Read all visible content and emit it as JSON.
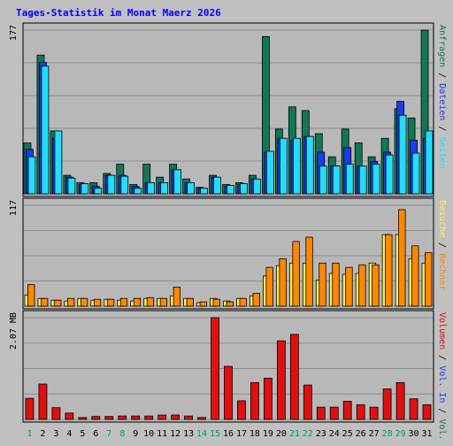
{
  "chart_data": {
    "type": "bar",
    "title": "Tages-Statistik im Monat Maerz 2026",
    "days": [
      "1",
      "2",
      "3",
      "4",
      "5",
      "6",
      "7",
      "8",
      "9",
      "10",
      "11",
      "12",
      "13",
      "14",
      "15",
      "16",
      "17",
      "18",
      "19",
      "20",
      "21",
      "22",
      "23",
      "24",
      "25",
      "26",
      "27",
      "28",
      "29",
      "30",
      "31"
    ],
    "weekend_days": [
      "1",
      "7",
      "8",
      "14",
      "15",
      "21",
      "22",
      "28",
      "29"
    ],
    "colors": {
      "background": "#c0c0c0",
      "plot": "#b8b8b8",
      "grid": "#8e8e8e",
      "title": "#0000ff",
      "tick": "#000000",
      "weekend_tick": "#00a060",
      "anfragen": "#117755",
      "dateien": "#1a3cf0",
      "seiten": "#22ddff",
      "besuche": "#ffee55",
      "rechner": "#ff8800",
      "volumen": "#e01010"
    },
    "panels": [
      {
        "id": "hits",
        "ymax": 177,
        "ymax_label": "177",
        "series": [
          {
            "name": "Anfragen",
            "values": [
              55,
              150,
              68,
              20,
              12,
              12,
              22,
              32,
              10,
              32,
              18,
              32,
              16,
              7,
              20,
              10,
              12,
              20,
              170,
              70,
              94,
              90,
              65,
              40,
              70,
              55,
              40,
              60,
              92,
              82,
              177
            ]
          },
          {
            "name": "Dateien",
            "values": [
              48,
              142,
              60,
              18,
              10,
              8,
              20,
              20,
              8,
              12,
              12,
              26,
              12,
              6,
              18,
              8,
              10,
              16,
              45,
              60,
              58,
              62,
              45,
              30,
              50,
              30,
              35,
              45,
              100,
              58,
              60
            ]
          },
          {
            "name": "Seiten",
            "values": [
              40,
              138,
              68,
              17,
              11,
              6,
              20,
              19,
              6,
              12,
              12,
              26,
              12,
              6,
              18,
              9,
              11,
              16,
              46,
              60,
              60,
              62,
              30,
              30,
              32,
              30,
              32,
              42,
              85,
              44,
              68
            ]
          }
        ],
        "labels": [
          {
            "text": "Anfragen",
            "series": "Anfragen"
          },
          {
            "text": "Dateien",
            "series": "Dateien"
          },
          {
            "text": "Seiten",
            "series": "Seiten"
          }
        ]
      },
      {
        "id": "visits",
        "ymax": 117,
        "ymax_label": "117",
        "series": [
          {
            "name": "Besuche",
            "values": [
              13,
              9,
              7,
              6,
              9,
              7,
              8,
              7,
              6,
              9,
              9,
              12,
              9,
              4,
              9,
              6,
              9,
              12,
              35,
              47,
              50,
              50,
              30,
              38,
              37,
              38,
              50,
              83,
              83,
              55,
              50
            ]
          },
          {
            "name": "Rechner",
            "values": [
              25,
              9,
              7,
              9,
              9,
              8,
              8,
              9,
              9,
              10,
              9,
              22,
              9,
              5,
              8,
              5,
              9,
              15,
              45,
              55,
              75,
              80,
              50,
              50,
              45,
              48,
              48,
              83,
              112,
              70,
              62
            ]
          }
        ],
        "labels": [
          {
            "text": "Besuche",
            "series": "Besuche"
          },
          {
            "text": "Rechner",
            "series": "Rechner"
          }
        ]
      },
      {
        "id": "volume",
        "ymax": 2.07,
        "ymax_label": "2.07 MB",
        "series": [
          {
            "name": "Volumen",
            "values": [
              0.43,
              0.72,
              0.24,
              0.13,
              0.04,
              0.06,
              0.06,
              0.07,
              0.07,
              0.07,
              0.09,
              0.09,
              0.07,
              0.04,
              2.07,
              1.08,
              0.38,
              0.75,
              0.84,
              1.6,
              1.73,
              0.7,
              0.25,
              0.25,
              0.37,
              0.3,
              0.25,
              0.62,
              0.75,
              0.42,
              0.3
            ]
          },
          {
            "name": "Vol. In",
            "values": [
              0,
              0,
              0,
              0,
              0,
              0,
              0,
              0,
              0,
              0,
              0,
              0,
              0,
              0,
              0,
              0,
              0,
              0,
              0,
              0,
              0,
              0,
              0,
              0,
              0,
              0,
              0,
              0,
              0,
              0,
              0
            ]
          },
          {
            "name": "Vol. Out",
            "values": [
              0,
              0,
              0,
              0,
              0,
              0,
              0,
              0,
              0,
              0,
              0,
              0,
              0,
              0,
              0,
              0,
              0,
              0,
              0,
              0,
              0,
              0,
              0,
              0,
              0,
              0,
              0,
              0,
              0,
              0,
              0
            ]
          }
        ],
        "labels": [
          {
            "text": "Volumen",
            "series": "Volumen"
          },
          {
            "text": "Vol. In",
            "series": "Vol. In"
          },
          {
            "text": "Vol. Out",
            "series": "Vol. Out"
          }
        ]
      }
    ],
    "grid": true,
    "legend_placement": "right-vertical"
  }
}
